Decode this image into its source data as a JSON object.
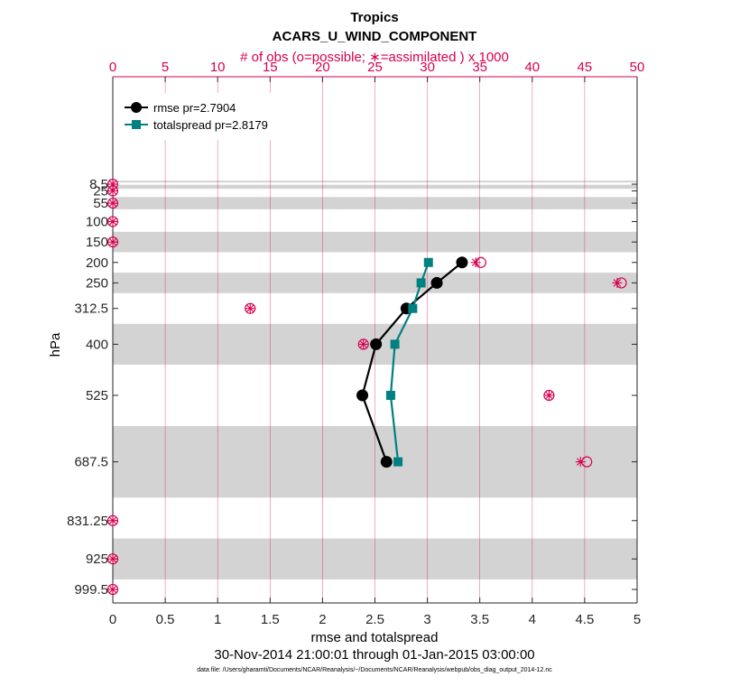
{
  "chart_data": {
    "type": "line",
    "title": "Tropics",
    "subtitle": "ACARS_U_WIND_COMPONENT",
    "top_axis_label": "# of obs (o=possible; ∗=assimilated ) x 1000",
    "xlabel": "rmse and totalspread",
    "ylabel": "hPa",
    "time_range": "30-Nov-2014 21:00:01 through 01-Jan-2015 03:00:00",
    "data_file": "data file: /Users/gharamti/Documents/NCAR/Reanalysis/~/Documents/NCAR/Reanalysis/webpub/obs_diag_output_2014-12.nc",
    "xlim": [
      0,
      5
    ],
    "x_ticks": [
      "0",
      "0.5",
      "1",
      "1.5",
      "2",
      "2.5",
      "3",
      "3.5",
      "4",
      "4.5",
      "5"
    ],
    "top_xlim": [
      0,
      50
    ],
    "top_ticks": [
      "0",
      "5",
      "10",
      "15",
      "20",
      "25",
      "30",
      "35",
      "40",
      "45",
      "50"
    ],
    "levels": [
      8.5,
      25,
      55,
      100,
      150,
      200,
      250,
      312.5,
      400,
      525,
      687.5,
      831.25,
      925,
      999.5
    ],
    "level_labels": [
      "8.5",
      "25",
      "55",
      "100",
      "150",
      "200",
      "250",
      "312.5",
      "400",
      "525",
      "687.5",
      "831.25",
      "925",
      "999.5"
    ],
    "series": [
      {
        "name": "rmse",
        "legend": "rmse pr=2.7904",
        "color": "#000000",
        "marker": "circle",
        "levels": [
          200,
          250,
          312.5,
          400,
          525,
          687.5
        ],
        "values": [
          3.33,
          3.09,
          2.8,
          2.51,
          2.38,
          2.61
        ]
      },
      {
        "name": "totalspread",
        "legend": "totalspread pr=2.8179",
        "color": "#008080",
        "marker": "square",
        "levels": [
          200,
          250,
          312.5,
          400,
          525,
          687.5
        ],
        "values": [
          3.01,
          2.94,
          2.86,
          2.69,
          2.65,
          2.72
        ]
      }
    ],
    "obs_counts": {
      "levels": [
        8.5,
        25,
        55,
        100,
        150,
        200,
        250,
        312.5,
        400,
        525,
        687.5,
        831.25,
        925,
        999.5
      ],
      "possible": [
        0,
        0,
        0,
        0,
        0,
        35.1,
        48.5,
        13.1,
        23.9,
        41.6,
        45.2,
        0,
        0,
        0
      ],
      "assimilated": [
        0,
        0,
        0,
        0,
        0,
        34.6,
        48.1,
        13.1,
        23.9,
        41.6,
        44.6,
        0,
        0,
        0
      ]
    },
    "shaded_bands_hpa": [
      [
        0,
        0
      ],
      [
        10,
        20
      ],
      [
        40,
        70
      ],
      [
        125,
        175
      ],
      [
        225,
        275
      ],
      [
        350,
        450
      ],
      [
        600,
        775
      ],
      [
        875,
        975
      ]
    ],
    "colors": {
      "accent": "#d6004f",
      "band": "#d3d3d3",
      "rmse": "#000000",
      "spread": "#008080"
    }
  }
}
